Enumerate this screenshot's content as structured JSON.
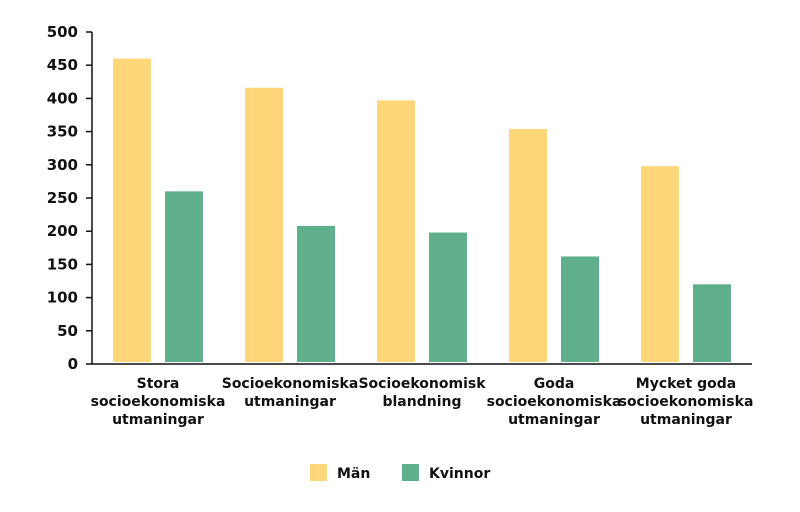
{
  "chart_data": {
    "type": "bar",
    "title": "",
    "xlabel": "",
    "ylabel": "",
    "ylim": [
      0,
      500
    ],
    "yticks": [
      0,
      50,
      100,
      150,
      200,
      250,
      300,
      350,
      400,
      450,
      500
    ],
    "grid": false,
    "legend_position": "bottom-center",
    "categories": [
      [
        "Stora",
        "socioekonomiska",
        "utmaningar"
      ],
      [
        "Socioekonomiska",
        "utmaningar"
      ],
      [
        "Socioekonomisk",
        "blandning"
      ],
      [
        "Goda",
        "socioekonomiska",
        "utmaningar"
      ],
      [
        "Mycket goda",
        "socioekonomiska",
        "utmaningar"
      ]
    ],
    "series": [
      {
        "name": "Män",
        "color": "#FFD77A",
        "values": [
          460,
          416,
          397,
          354,
          298
        ]
      },
      {
        "name": "Kvinnor",
        "color": "#5FAF8A",
        "values": [
          260,
          208,
          198,
          162,
          120
        ]
      }
    ]
  }
}
